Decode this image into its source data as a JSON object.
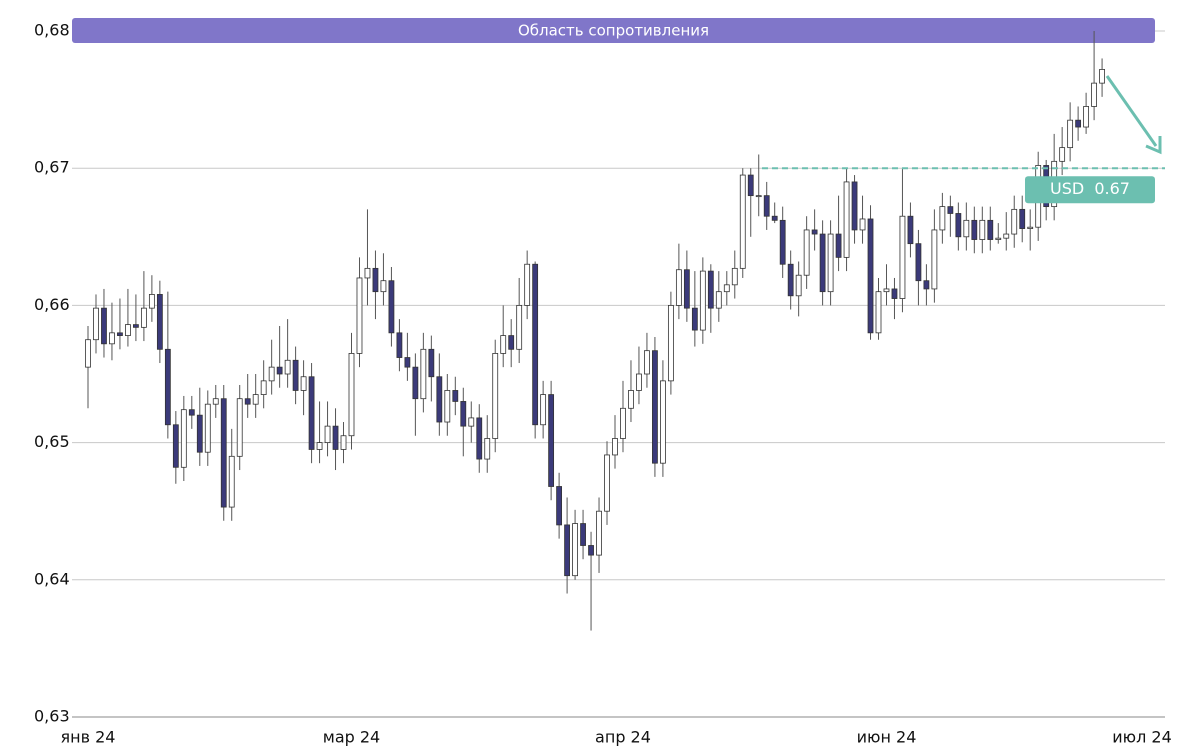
{
  "chart_data": {
    "type": "candlestick",
    "ylim": [
      0.63,
      0.68
    ],
    "yticks": [
      {
        "value": 0.63,
        "label": "0,63"
      },
      {
        "value": 0.64,
        "label": "0,64"
      },
      {
        "value": 0.65,
        "label": "0,65"
      },
      {
        "value": 0.66,
        "label": "0,66"
      },
      {
        "value": 0.67,
        "label": "0,67"
      },
      {
        "value": 0.68,
        "label": "0,68"
      }
    ],
    "grid": true,
    "up_color": "#ffffff",
    "down_color": "#3b3a7a",
    "categories": [
      "янв 24",
      null,
      null,
      null,
      null,
      null,
      null,
      null,
      null,
      null,
      null,
      null,
      null,
      null,
      null,
      null,
      null,
      null,
      null,
      null,
      null,
      null,
      null,
      null,
      null,
      null,
      null,
      null,
      null,
      null,
      null,
      null,
      null,
      "мар 24",
      null,
      null,
      null,
      null,
      null,
      null,
      null,
      null,
      null,
      null,
      null,
      null,
      null,
      null,
      null,
      null,
      null,
      null,
      null,
      null,
      null,
      null,
      null,
      null,
      null,
      null,
      null,
      null,
      null,
      null,
      null,
      null,
      null,
      "апр 24",
      null,
      null,
      null,
      null,
      null,
      null,
      null,
      null,
      null,
      null,
      null,
      null,
      null,
      null,
      null,
      null,
      null,
      null,
      null,
      null,
      null,
      null,
      null,
      null,
      null,
      null,
      null,
      null,
      null,
      null,
      null,
      null,
      "июн 24",
      null,
      null,
      null,
      null,
      null,
      null,
      null,
      null,
      null,
      null,
      null,
      null,
      null,
      null,
      null,
      null,
      null,
      null,
      null,
      null,
      null,
      null,
      null,
      null,
      null,
      null,
      null,
      null,
      null,
      null,
      null,
      "июл 24"
    ],
    "open": [
      0.6555,
      0.6575,
      0.6598,
      0.6572,
      0.658,
      0.6578,
      0.6586,
      0.6584,
      0.6598,
      0.6608,
      0.6568,
      0.6513,
      0.6482,
      0.6524,
      0.652,
      0.6493,
      0.6528,
      0.6532,
      0.6453,
      0.649,
      0.6532,
      0.6528,
      0.6535,
      0.6545,
      0.6555,
      0.655,
      0.656,
      0.6538,
      0.6548,
      0.6495,
      0.65,
      0.6512,
      0.6495,
      0.6505,
      0.6565,
      0.662,
      0.6627,
      0.661,
      0.6618,
      0.658,
      0.6562,
      0.6555,
      0.6532,
      0.6568,
      0.6548,
      0.6515,
      0.6538,
      0.653,
      0.6512,
      0.6518,
      0.6488,
      0.6503,
      0.6565,
      0.6578,
      0.6568,
      0.66,
      0.663,
      0.6513,
      0.6535,
      0.6468,
      0.644,
      0.6403,
      0.6441,
      0.6425,
      0.6418,
      0.645,
      0.6491,
      0.6503,
      0.6525,
      0.6538,
      0.655,
      0.6567,
      0.6485,
      0.6545,
      0.66,
      0.6626,
      0.6598,
      0.6582,
      0.6625,
      0.6598,
      0.661,
      0.6615,
      0.6627,
      0.6695,
      0.668,
      0.668,
      0.6665,
      0.6662,
      0.663,
      0.6607,
      0.6622,
      0.6655,
      0.6652,
      0.661,
      0.6652,
      0.6635,
      0.669,
      0.6655,
      0.6663,
      0.658,
      0.661,
      0.6612,
      0.6605,
      0.6665,
      0.6645,
      0.6618,
      0.6612,
      0.6655,
      0.6672,
      0.6667,
      0.665,
      0.6662,
      0.6648,
      0.6662,
      0.6648,
      0.6649,
      0.6652,
      0.667,
      0.6656,
      0.6657,
      0.6702,
      0.6672,
      0.6705,
      0.6715,
      0.6735,
      0.673,
      0.6745,
      0.6762,
      null,
      null,
      null,
      null,
      null
    ],
    "high": [
      0.6585,
      0.6608,
      0.6612,
      0.6602,
      0.6605,
      0.6612,
      0.6608,
      0.6625,
      0.6622,
      0.6618,
      0.661,
      0.6523,
      0.6534,
      0.6534,
      0.654,
      0.6538,
      0.6542,
      0.6542,
      0.651,
      0.6542,
      0.655,
      0.655,
      0.656,
      0.6575,
      0.6585,
      0.659,
      0.657,
      0.656,
      0.6558,
      0.653,
      0.653,
      0.6525,
      0.6515,
      0.658,
      0.6635,
      0.667,
      0.664,
      0.6638,
      0.6628,
      0.659,
      0.658,
      0.6565,
      0.658,
      0.6578,
      0.6565,
      0.655,
      0.6548,
      0.654,
      0.653,
      0.6528,
      0.652,
      0.6575,
      0.66,
      0.659,
      0.662,
      0.664,
      0.6632,
      0.6545,
      0.6545,
      0.6478,
      0.646,
      0.6451,
      0.6451,
      0.6435,
      0.646,
      0.6501,
      0.652,
      0.6545,
      0.656,
      0.657,
      0.658,
      0.6577,
      0.656,
      0.661,
      0.6645,
      0.664,
      0.6625,
      0.6635,
      0.663,
      0.6625,
      0.6625,
      0.664,
      0.67,
      0.67,
      0.671,
      0.669,
      0.6675,
      0.6672,
      0.664,
      0.6632,
      0.6665,
      0.667,
      0.6662,
      0.6662,
      0.668,
      0.67,
      0.6695,
      0.668,
      0.6673,
      0.662,
      0.663,
      0.662,
      0.67,
      0.6675,
      0.6655,
      0.663,
      0.667,
      0.6682,
      0.668,
      0.6675,
      0.6675,
      0.6672,
      0.6672,
      0.6672,
      0.666,
      0.6668,
      0.668,
      0.668,
      0.667,
      0.6712,
      0.6706,
      0.6725,
      0.673,
      0.6748,
      0.6745,
      0.6755,
      0.68,
      0.678,
      null,
      null,
      null,
      null,
      null
    ],
    "low": [
      0.6525,
      0.6565,
      0.6562,
      0.656,
      0.6568,
      0.657,
      0.6574,
      0.6574,
      0.6588,
      0.6558,
      0.6503,
      0.647,
      0.6472,
      0.651,
      0.6483,
      0.6483,
      0.6518,
      0.6443,
      0.6443,
      0.648,
      0.6518,
      0.6518,
      0.6525,
      0.6535,
      0.654,
      0.654,
      0.6528,
      0.652,
      0.6485,
      0.6485,
      0.649,
      0.648,
      0.6485,
      0.6495,
      0.6555,
      0.66,
      0.659,
      0.66,
      0.657,
      0.6552,
      0.6545,
      0.6505,
      0.6522,
      0.653,
      0.6505,
      0.6505,
      0.652,
      0.649,
      0.65,
      0.6478,
      0.6478,
      0.6493,
      0.6555,
      0.6555,
      0.6558,
      0.659,
      0.6503,
      0.6503,
      0.6458,
      0.643,
      0.639,
      0.64,
      0.6415,
      0.6363,
      0.6405,
      0.644,
      0.6481,
      0.6493,
      0.6515,
      0.6528,
      0.654,
      0.6475,
      0.6475,
      0.6535,
      0.659,
      0.6588,
      0.657,
      0.6572,
      0.658,
      0.6588,
      0.66,
      0.6605,
      0.662,
      0.665,
      0.6665,
      0.6655,
      0.666,
      0.662,
      0.6597,
      0.6592,
      0.6612,
      0.664,
      0.66,
      0.66,
      0.6625,
      0.6625,
      0.6645,
      0.6645,
      0.6575,
      0.6575,
      0.66,
      0.659,
      0.6595,
      0.6635,
      0.66,
      0.66,
      0.6602,
      0.6645,
      0.665,
      0.664,
      0.664,
      0.6638,
      0.6638,
      0.664,
      0.6645,
      0.664,
      0.6642,
      0.6646,
      0.664,
      0.6647,
      0.6662,
      0.6662,
      0.6695,
      0.6705,
      0.672,
      0.6725,
      0.6735,
      0.6752,
      null,
      null,
      null,
      null,
      null
    ],
    "close": [
      0.6575,
      0.6598,
      0.6572,
      0.658,
      0.6578,
      0.6586,
      0.6584,
      0.6598,
      0.6608,
      0.6568,
      0.6513,
      0.6482,
      0.6524,
      0.652,
      0.6493,
      0.6528,
      0.6532,
      0.6453,
      0.649,
      0.6532,
      0.6528,
      0.6535,
      0.6545,
      0.6555,
      0.655,
      0.656,
      0.6538,
      0.6548,
      0.6495,
      0.65,
      0.6512,
      0.6495,
      0.6505,
      0.6565,
      0.662,
      0.6627,
      0.661,
      0.6618,
      0.658,
      0.6562,
      0.6555,
      0.6532,
      0.6568,
      0.6548,
      0.6515,
      0.6538,
      0.653,
      0.6512,
      0.6518,
      0.6488,
      0.6503,
      0.6565,
      0.6578,
      0.6568,
      0.66,
      0.663,
      0.6513,
      0.6535,
      0.6468,
      0.644,
      0.6403,
      0.6441,
      0.6425,
      0.6418,
      0.645,
      0.6491,
      0.6503,
      0.6525,
      0.6538,
      0.655,
      0.6567,
      0.6485,
      0.6545,
      0.66,
      0.6626,
      0.6598,
      0.6582,
      0.6625,
      0.6598,
      0.661,
      0.6615,
      0.6627,
      0.6695,
      0.668,
      0.668,
      0.6665,
      0.6662,
      0.663,
      0.6607,
      0.6622,
      0.6655,
      0.6652,
      0.661,
      0.6652,
      0.6635,
      0.669,
      0.6655,
      0.6663,
      0.658,
      0.661,
      0.6612,
      0.6605,
      0.6665,
      0.6645,
      0.6618,
      0.6612,
      0.6655,
      0.6672,
      0.6667,
      0.665,
      0.6662,
      0.6648,
      0.6662,
      0.6648,
      0.6649,
      0.6652,
      0.667,
      0.6656,
      0.6657,
      0.6702,
      0.6672,
      0.6705,
      0.6715,
      0.6735,
      0.673,
      0.6745,
      0.6762,
      0.6772,
      null,
      null,
      null,
      null,
      null
    ],
    "resistance_zone": {
      "label": "Область сопротивления",
      "color": "#8076c9"
    },
    "price_line": {
      "value": 0.67,
      "label": "USD  0.67",
      "color": "#6cbfb0"
    }
  }
}
